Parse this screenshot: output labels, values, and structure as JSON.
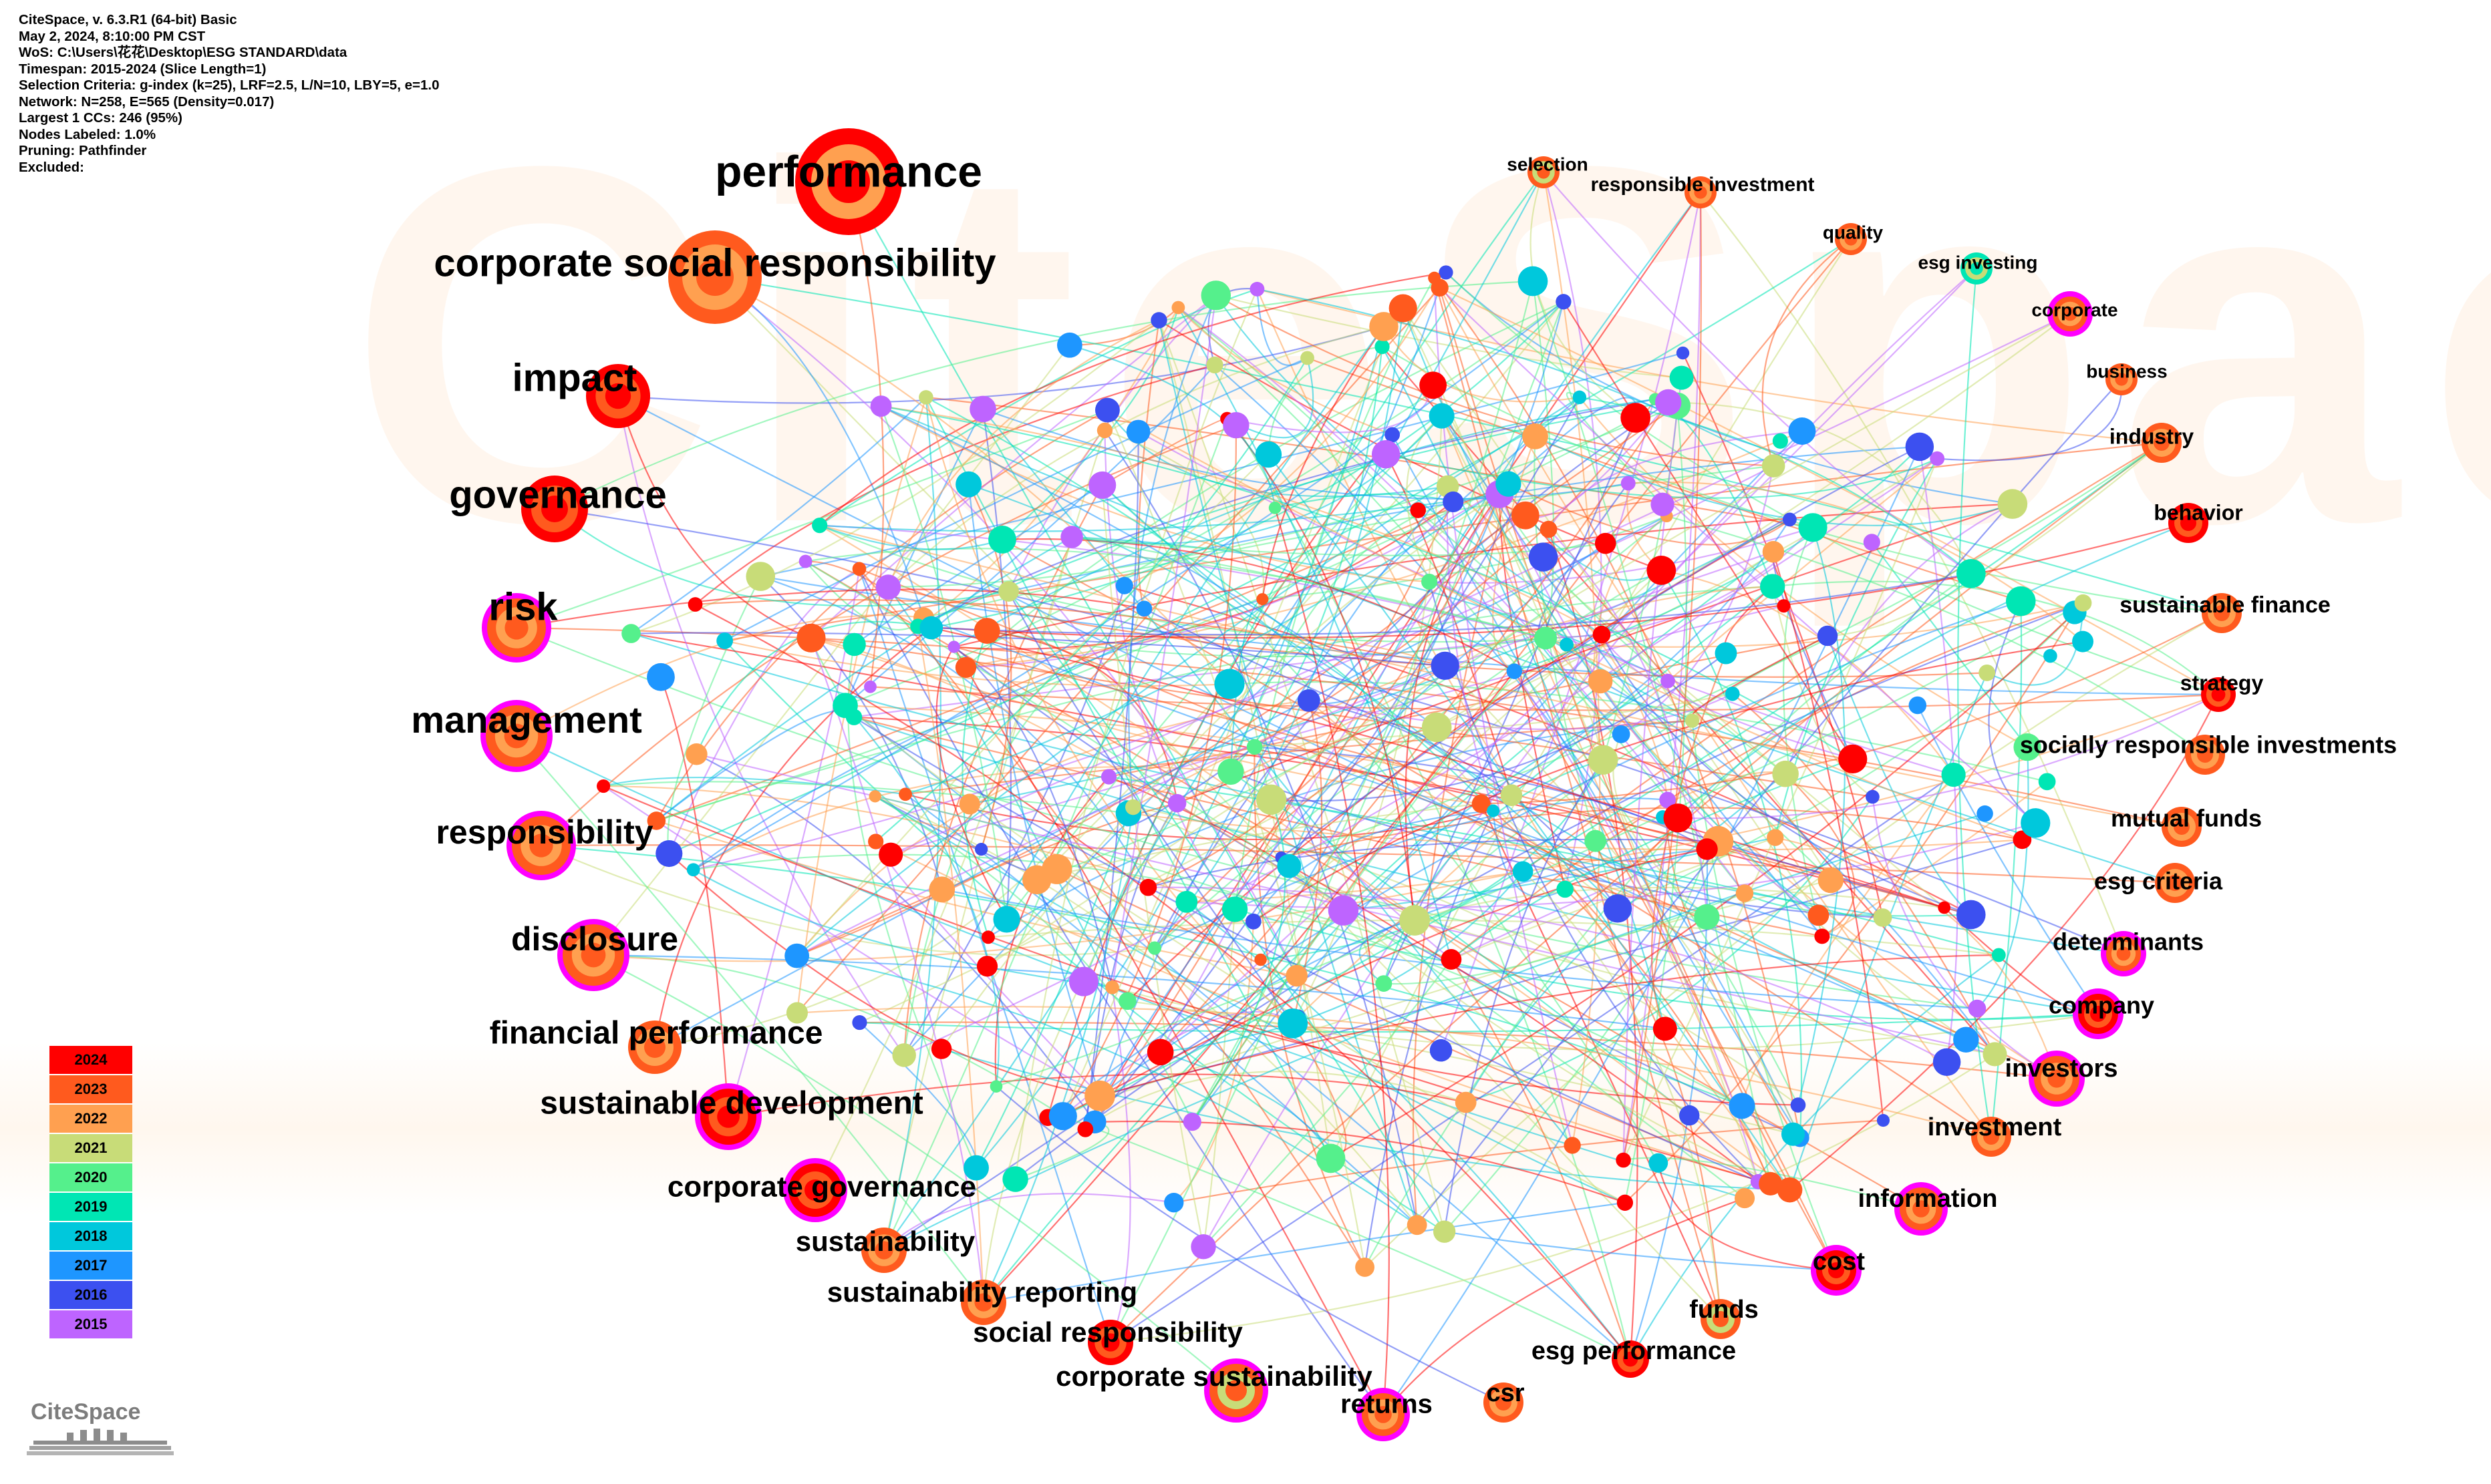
{
  "header": {
    "lines": [
      "CiteSpace, v. 6.3.R1 (64-bit) Basic",
      "May 2, 2024, 8:10:00 PM CST",
      "WoS: C:\\Users\\花花\\Desktop\\ESG STANDARD\\data",
      "Timespan: 2015-2024 (Slice Length=1)",
      "Selection Criteria: g-index (k=25), LRF=2.5, L/N=10, LBY=5, e=1.0",
      "Network: N=258, E=565 (Density=0.017)",
      "Largest 1 CCs: 246 (95%)",
      "Nodes Labeled: 1.0%",
      "Pruning: Pathfinder",
      "Excluded:"
    ]
  },
  "watermark_text": "CiteSpace",
  "logo": {
    "text": "CiteSpace"
  },
  "legend": [
    {
      "year": "2024",
      "color": "#ff0000"
    },
    {
      "year": "2023",
      "color": "#ff5a1e"
    },
    {
      "year": "2022",
      "color": "#ffa050"
    },
    {
      "year": "2021",
      "color": "#c8dc78"
    },
    {
      "year": "2020",
      "color": "#55f08c"
    },
    {
      "year": "2019",
      "color": "#00e6b4"
    },
    {
      "year": "2018",
      "color": "#00c8dc"
    },
    {
      "year": "2017",
      "color": "#1e96ff"
    },
    {
      "year": "2016",
      "color": "#3c50f0"
    },
    {
      "year": "2015",
      "color": "#be64ff"
    }
  ],
  "network": {
    "keywords": [
      {
        "label": "performance",
        "year": "2024",
        "ring": "2022",
        "centrality": false
      },
      {
        "label": "corporate social responsibility",
        "year": "2023",
        "ring": "2022",
        "centrality": false
      },
      {
        "label": "impact",
        "year": "2024",
        "ring": "2023",
        "centrality": false
      },
      {
        "label": "governance",
        "year": "2024",
        "ring": "2023",
        "centrality": false
      },
      {
        "label": "risk",
        "year": "2023",
        "ring": "2022",
        "centrality": true
      },
      {
        "label": "management",
        "year": "2023",
        "ring": "2022",
        "centrality": true
      },
      {
        "label": "responsibility",
        "year": "2023",
        "ring": "2022",
        "centrality": true
      },
      {
        "label": "disclosure",
        "year": "2023",
        "ring": "2022",
        "centrality": true
      },
      {
        "label": "financial performance",
        "year": "2023",
        "ring": "2022",
        "centrality": false
      },
      {
        "label": "sustainable development",
        "year": "2024",
        "ring": "2023",
        "centrality": true
      },
      {
        "label": "corporate governance",
        "year": "2024",
        "ring": "2023",
        "centrality": true
      },
      {
        "label": "sustainability",
        "year": "2023",
        "ring": "2022",
        "centrality": false
      },
      {
        "label": "sustainability reporting",
        "year": "2023",
        "ring": "2022",
        "centrality": false
      },
      {
        "label": "social responsibility",
        "year": "2024",
        "ring": "2023",
        "centrality": false
      },
      {
        "label": "corporate sustainability",
        "year": "2023",
        "ring": "2021",
        "centrality": true
      },
      {
        "label": "returns",
        "year": "2023",
        "ring": "2022",
        "centrality": true
      },
      {
        "label": "csr",
        "year": "2023",
        "ring": "2022",
        "centrality": false
      },
      {
        "label": "esg performance",
        "year": "2024",
        "ring": "2023",
        "centrality": false
      },
      {
        "label": "funds",
        "year": "2023",
        "ring": "2021",
        "centrality": false
      },
      {
        "label": "cost",
        "year": "2024",
        "ring": "2023",
        "centrality": true
      },
      {
        "label": "information",
        "year": "2023",
        "ring": "2022",
        "centrality": true
      },
      {
        "label": "investment",
        "year": "2023",
        "ring": "2022",
        "centrality": false
      },
      {
        "label": "investors",
        "year": "2023",
        "ring": "2022",
        "centrality": true
      },
      {
        "label": "company",
        "year": "2024",
        "ring": "2023",
        "centrality": true
      },
      {
        "label": "determinants",
        "year": "2023",
        "ring": "2022",
        "centrality": true
      },
      {
        "label": "esg criteria",
        "year": "2023",
        "ring": "2022",
        "centrality": false
      },
      {
        "label": "mutual funds",
        "year": "2023",
        "ring": "2022",
        "centrality": false
      },
      {
        "label": "socially responsible investments",
        "year": "2023",
        "ring": "2022",
        "centrality": false
      },
      {
        "label": "strategy",
        "year": "2024",
        "ring": "2023",
        "centrality": false
      },
      {
        "label": "sustainable finance",
        "year": "2023",
        "ring": "2022",
        "centrality": false
      },
      {
        "label": "behavior",
        "year": "2024",
        "ring": "2023",
        "centrality": false
      },
      {
        "label": "industry",
        "year": "2023",
        "ring": "2022",
        "centrality": false
      },
      {
        "label": "business",
        "year": "2023",
        "ring": "2022",
        "centrality": false
      },
      {
        "label": "corporate",
        "year": "2023",
        "ring": "2022",
        "centrality": true
      },
      {
        "label": "esg investing",
        "year": "2019",
        "ring": "2021",
        "centrality": false
      },
      {
        "label": "quality",
        "year": "2023",
        "ring": "2022",
        "centrality": false
      },
      {
        "label": "responsible investment",
        "year": "2023",
        "ring": "2022",
        "centrality": false
      },
      {
        "label": "selection",
        "year": "2023",
        "ring": "2021",
        "centrality": false
      }
    ]
  }
}
